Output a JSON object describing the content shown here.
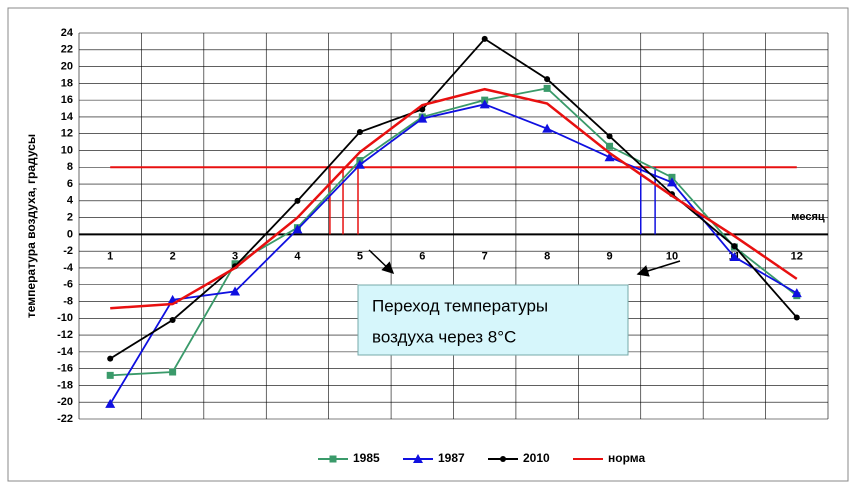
{
  "chart_data": {
    "type": "line",
    "y_label": "температура воздуха, градусы",
    "x_label": "месяц",
    "categories": [
      "1",
      "2",
      "3",
      "4",
      "5",
      "6",
      "7",
      "8",
      "9",
      "10",
      "11",
      "12"
    ],
    "series": [
      {
        "name": "1985",
        "color": "#3a9a6a",
        "marker": "square",
        "values": [
          -16.8,
          -16.4,
          -3.5,
          0.8,
          8.8,
          14.0,
          16.0,
          17.4,
          10.5,
          6.8,
          -1.5,
          -7.3
        ]
      },
      {
        "name": "1987",
        "color": "#1010e0",
        "marker": "triangle",
        "values": [
          -20.2,
          -7.8,
          -6.8,
          0.6,
          8.3,
          13.8,
          15.5,
          12.6,
          9.2,
          6.2,
          -2.7,
          -7.0
        ]
      },
      {
        "name": "2010",
        "color": "#000000",
        "marker": "circle",
        "values": [
          -14.8,
          -10.2,
          -3.8,
          4.0,
          12.2,
          14.9,
          23.3,
          18.5,
          11.7,
          4.8,
          -1.4,
          -9.9
        ]
      },
      {
        "name": "норма",
        "color": "#e81010",
        "marker": "none",
        "values": [
          -8.8,
          -8.3,
          -4.0,
          2.0,
          9.8,
          15.4,
          17.3,
          15.6,
          9.7,
          4.6,
          -0.2,
          -5.3
        ]
      }
    ],
    "threshold": {
      "value": 8,
      "color": "#e81010"
    },
    "crossings": [
      {
        "x": 4.52,
        "color": "#e81010"
      },
      {
        "x": 4.73,
        "color": "#e81010"
      },
      {
        "x": 4.97,
        "color": "#e81010"
      },
      {
        "x": 9.5,
        "color": "#1010e0"
      },
      {
        "x": 9.73,
        "color": "#1010e0"
      }
    ],
    "annotation": [
      "Переход температуры",
      "воздуха через 8°C"
    ],
    "ylim": [
      -22,
      24
    ],
    "yticks": [
      -22,
      -20,
      -18,
      -16,
      -14,
      -12,
      -10,
      -8,
      -6,
      -4,
      -2,
      0,
      2,
      4,
      6,
      8,
      10,
      12,
      14,
      16,
      18,
      20,
      22,
      24
    ],
    "grid": true
  }
}
